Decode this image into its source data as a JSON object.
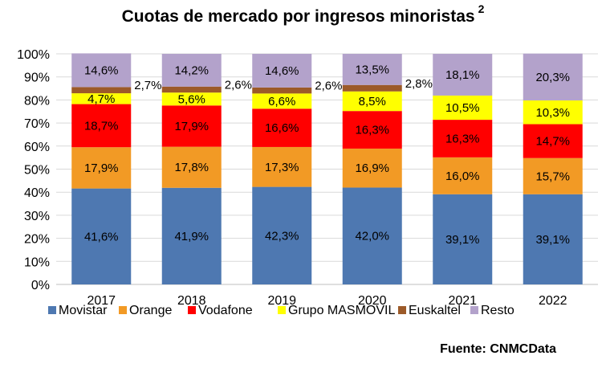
{
  "title": "Cuotas de mercado por ingresos minoristas",
  "title_superscript": "2",
  "source": "Fuente: CNMCData",
  "chart_data": {
    "type": "bar",
    "stacked": true,
    "categories": [
      "2017",
      "2018",
      "2019",
      "2020",
      "2021",
      "2022"
    ],
    "series": [
      {
        "name": "Movistar",
        "color": "#4e78b1",
        "values": [
          41.6,
          41.9,
          42.3,
          42.0,
          39.1,
          39.1
        ],
        "labels": [
          "41,6%",
          "41,9%",
          "42,3%",
          "42,0%",
          "39,1%",
          "39,1%"
        ]
      },
      {
        "name": "Orange",
        "color": "#f29a25",
        "values": [
          17.9,
          17.8,
          17.3,
          16.9,
          16.0,
          15.7
        ],
        "labels": [
          "17,9%",
          "17,8%",
          "17,3%",
          "16,9%",
          "16,0%",
          "15,7%"
        ]
      },
      {
        "name": "Vodafone",
        "color": "#ff0000",
        "values": [
          18.7,
          17.9,
          16.6,
          16.3,
          16.3,
          14.7
        ],
        "labels": [
          "18,7%",
          "17,9%",
          "16,6%",
          "16,3%",
          "16,3%",
          "14,7%"
        ]
      },
      {
        "name": "Grupo MASMOVIL",
        "color": "#ffff00",
        "values": [
          4.7,
          5.6,
          6.6,
          8.5,
          10.5,
          10.3
        ],
        "labels": [
          "4,7%",
          "5,6%",
          "6,6%",
          "8,5%",
          "10,5%",
          "10,3%"
        ]
      },
      {
        "name": "Euskaltel",
        "color": "#9c5a29",
        "values": [
          2.7,
          2.6,
          2.6,
          2.8,
          0,
          0
        ],
        "labels": [
          "2,7%",
          "2,6%",
          "2,6%",
          "2,8%",
          "",
          ""
        ]
      },
      {
        "name": "Resto",
        "color": "#b3a2cb",
        "values": [
          14.6,
          14.2,
          14.6,
          13.5,
          18.1,
          20.3
        ],
        "labels": [
          "14,6%",
          "14,2%",
          "14,6%",
          "13,5%",
          "18,1%",
          "20,3%"
        ]
      }
    ],
    "ylim": [
      0,
      100
    ],
    "yticks": [
      "0%",
      "10%",
      "20%",
      "30%",
      "40%",
      "50%",
      "60%",
      "70%",
      "80%",
      "90%",
      "100%"
    ],
    "grid": true,
    "legend_position": "bottom"
  }
}
